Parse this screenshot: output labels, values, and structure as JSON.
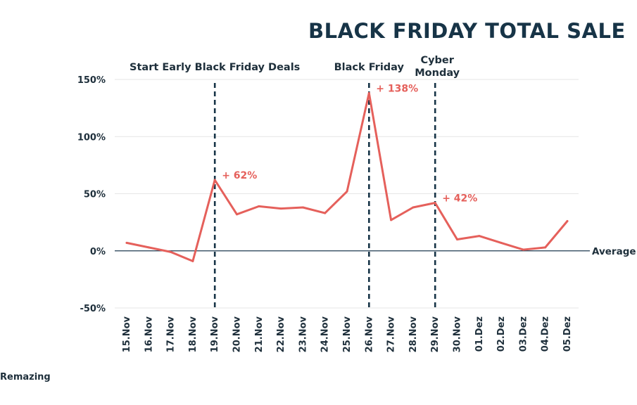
{
  "chart_data": {
    "type": "line",
    "title": "BLACK FRIDAY TOTAL SALE",
    "x": [
      "15.Nov",
      "16.Nov",
      "17.Nov",
      "18.Nov",
      "19.Nov",
      "20.Nov",
      "21.Nov",
      "22.Nov",
      "23.Nov",
      "24.Nov",
      "25.Nov",
      "26.Nov",
      "27.Nov",
      "28.Nov",
      "29.Nov",
      "30.Nov",
      "01.Dez",
      "02.Dez",
      "03.Dez",
      "04.Dez",
      "05.Dez"
    ],
    "series": [
      {
        "values": [
          7,
          3,
          -1,
          -9,
          62,
          32,
          39,
          37,
          38,
          33,
          52,
          138,
          27,
          38,
          42,
          10,
          13,
          7,
          1,
          3,
          26
        ],
        "color": "#e5605b"
      }
    ],
    "ylim": [
      -50,
      150
    ],
    "yticks": [
      -50,
      0,
      50,
      100,
      150
    ],
    "ytick_labels": [
      "-50%",
      "0%",
      "50%",
      "100%",
      "150%"
    ],
    "grid": true,
    "reference_line": {
      "y": 0,
      "label": "Average l",
      "color": "#1e3a4f"
    },
    "events": [
      {
        "x": "19.Nov",
        "label": "Start Early Black Friday Deals"
      },
      {
        "x": "26.Nov",
        "label": "Black Friday"
      },
      {
        "x": "29.Nov",
        "label_lines": [
          "Cyber",
          "Monday"
        ]
      }
    ],
    "annotations": [
      {
        "x": "19.Nov",
        "text": "+ 62%"
      },
      {
        "x": "26.Nov",
        "text": "+ 138%"
      },
      {
        "x": "29.Nov",
        "text": "+ 42%"
      }
    ]
  },
  "branding": {
    "logo_text": "Remazing"
  }
}
